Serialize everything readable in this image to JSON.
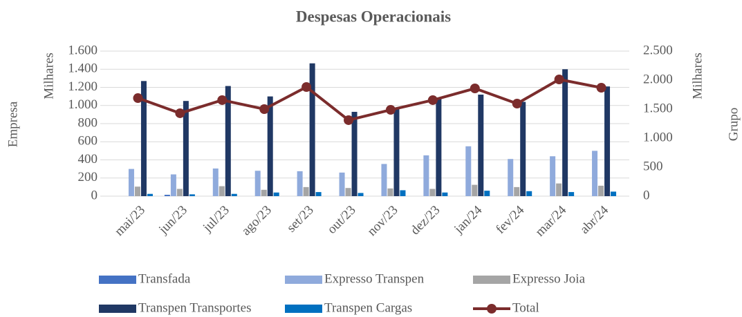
{
  "chart_data": {
    "type": "bar_line",
    "title": "Despesas Operacionais",
    "y_label": "Empresa",
    "y_unit": "Milhares",
    "y2_label": "Grupo",
    "y2_unit": "Milhares",
    "categories": [
      "mai/23",
      "jun/23",
      "jul/23",
      "ago/23",
      "set/23",
      "out/23",
      "nov/23",
      "dez/23",
      "jan/24",
      "fev/24",
      "mar/24",
      "abr/24"
    ],
    "series": [
      {
        "name": "Transfada",
        "color": "#4472c4",
        "type": "bar",
        "values": [
          0,
          15,
          0,
          0,
          0,
          0,
          0,
          0,
          0,
          0,
          0,
          0
        ]
      },
      {
        "name": "Expresso Transpen",
        "color": "#8faadc",
        "type": "bar",
        "values": [
          300,
          240,
          305,
          280,
          275,
          260,
          355,
          450,
          550,
          410,
          440,
          500
        ]
      },
      {
        "name": "Expresso Joia",
        "color": "#a5a5a5",
        "type": "bar",
        "values": [
          105,
          80,
          110,
          70,
          100,
          90,
          85,
          80,
          125,
          100,
          140,
          115
        ]
      },
      {
        "name": "Transpen Transportes",
        "color": "#203864",
        "type": "bar",
        "values": [
          1270,
          1050,
          1215,
          1100,
          1465,
          930,
          960,
          1080,
          1120,
          1040,
          1400,
          1210
        ]
      },
      {
        "name": "Transpen Cargas",
        "color": "#0070c0",
        "type": "bar",
        "values": [
          25,
          20,
          25,
          40,
          45,
          35,
          65,
          40,
          60,
          55,
          45,
          50
        ]
      },
      {
        "name": "Total",
        "color": "#7b2c2c",
        "type": "line",
        "axis": "y2",
        "values": [
          1690,
          1429,
          1655,
          1500,
          1881,
          1310,
          1488,
          1655,
          1857,
          1595,
          2012,
          1869
        ]
      }
    ],
    "ylim": [
      0,
      1600
    ],
    "yticks": [
      0,
      200,
      400,
      600,
      800,
      {
        "value": 1000,
        "label": "1.000"
      },
      {
        "value": 1200,
        "label": "1.200"
      },
      {
        "value": 1400,
        "label": "1.400"
      },
      {
        "value": 1600,
        "label": "1.600"
      }
    ],
    "y2lim": [
      0,
      2500
    ],
    "y2ticks": [
      0,
      500,
      {
        "value": 1000,
        "label": "1.000"
      },
      {
        "value": 1500,
        "label": "1.500"
      },
      {
        "value": 2000,
        "label": "2.000"
      },
      {
        "value": 2500,
        "label": "2.500"
      }
    ],
    "grid": true
  }
}
